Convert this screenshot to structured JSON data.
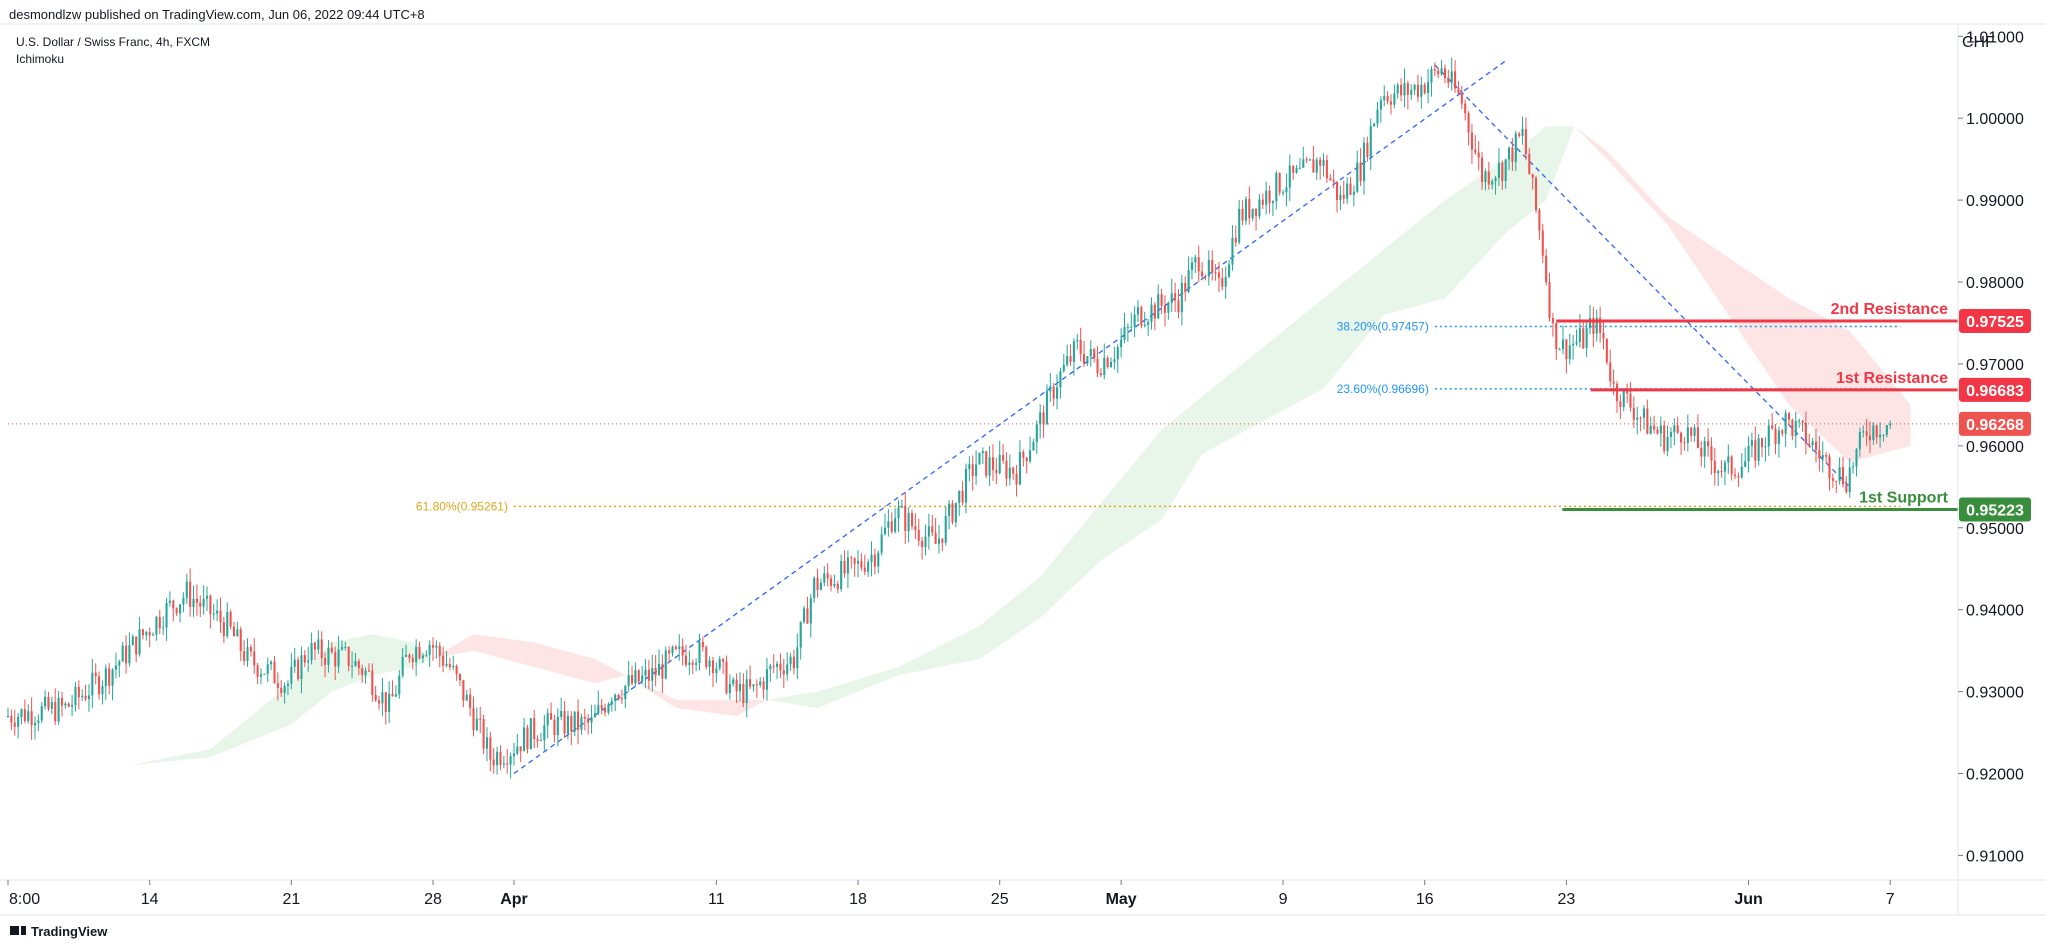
{
  "header": {
    "published": "desmondlzw published on TradingView.com, Jun 06, 2022 09:44 UTC+8",
    "symbol": "U.S. Dollar / Swiss Franc, 4h, FXCM",
    "indicator": "Ichimoku"
  },
  "footer": {
    "brand": "TradingView"
  },
  "colors": {
    "up": "#26a69a",
    "down": "#ef5350",
    "cloud_up": "#e8f5e9",
    "cloud_down": "#fde5e5",
    "trend": "#2962ff",
    "fib_blue": "#2196f3",
    "fib_orange": "#e0a61c",
    "resistance": "#f23645",
    "support": "#388e3c"
  },
  "chart_data": {
    "type": "candlestick",
    "currency": "CHF",
    "ylim": [
      0.907,
      1.0115
    ],
    "y_ticks": [
      "1.01000",
      "1.00000",
      "0.99000",
      "0.98000",
      "0.97000",
      "0.96000",
      "0.95000",
      "0.94000",
      "0.93000",
      "0.92000",
      "0.91000"
    ],
    "x_ticks": [
      {
        "label": "8:00",
        "x": 0,
        "bold": false
      },
      {
        "label": "14",
        "x": 7,
        "bold": false
      },
      {
        "label": "21",
        "x": 14,
        "bold": false
      },
      {
        "label": "28",
        "x": 21,
        "bold": false
      },
      {
        "label": "Apr",
        "x": 25,
        "bold": true
      },
      {
        "label": "11",
        "x": 35,
        "bold": false
      },
      {
        "label": "18",
        "x": 42,
        "bold": false
      },
      {
        "label": "25",
        "x": 49,
        "bold": false
      },
      {
        "label": "May",
        "x": 55,
        "bold": true
      },
      {
        "label": "9",
        "x": 63,
        "bold": false
      },
      {
        "label": "16",
        "x": 70,
        "bold": false
      },
      {
        "label": "23",
        "x": 77,
        "bold": false
      },
      {
        "label": "Jun",
        "x": 86,
        "bold": true
      },
      {
        "label": "7",
        "x": 93,
        "bold": false
      }
    ],
    "x_range": [
      0,
      96.3
    ],
    "price_path": [
      [
        0,
        0.927
      ],
      [
        3,
        0.928
      ],
      [
        5,
        0.932
      ],
      [
        8,
        0.94
      ],
      [
        9,
        0.942
      ],
      [
        10,
        0.94
      ],
      [
        11,
        0.938
      ],
      [
        12,
        0.934
      ],
      [
        14,
        0.931
      ],
      [
        15,
        0.935
      ],
      [
        17,
        0.934
      ],
      [
        18,
        0.932
      ],
      [
        19,
        0.928
      ],
      [
        20,
        0.935
      ],
      [
        21,
        0.936
      ],
      [
        22,
        0.933
      ],
      [
        23,
        0.928
      ],
      [
        24,
        0.922
      ],
      [
        25,
        0.923
      ],
      [
        26,
        0.925
      ],
      [
        27,
        0.926
      ],
      [
        29,
        0.926
      ],
      [
        30,
        0.93
      ],
      [
        32,
        0.932
      ],
      [
        33,
        0.934
      ],
      [
        34,
        0.935
      ],
      [
        35,
        0.934
      ],
      [
        36,
        0.93
      ],
      [
        37,
        0.93
      ],
      [
        38,
        0.933
      ],
      [
        39,
        0.934
      ],
      [
        40,
        0.943
      ],
      [
        42,
        0.945
      ],
      [
        43,
        0.947
      ],
      [
        44,
        0.952
      ],
      [
        45,
        0.95
      ],
      [
        46,
        0.948
      ],
      [
        47,
        0.953
      ],
      [
        48,
        0.958
      ],
      [
        50,
        0.957
      ],
      [
        51,
        0.962
      ],
      [
        52,
        0.968
      ],
      [
        53,
        0.972
      ],
      [
        54,
        0.97
      ],
      [
        55,
        0.972
      ],
      [
        56,
        0.976
      ],
      [
        57,
        0.977
      ],
      [
        58,
        0.978
      ],
      [
        59,
        0.983
      ],
      [
        60,
        0.979
      ],
      [
        61,
        0.988
      ],
      [
        62,
        0.99
      ],
      [
        63,
        0.992
      ],
      [
        64,
        0.993
      ],
      [
        65,
        0.995
      ],
      [
        66,
        0.99
      ],
      [
        67,
        0.994
      ],
      [
        68,
        1.003
      ],
      [
        69,
        1.003
      ],
      [
        70,
        1.004
      ],
      [
        71,
        1.006
      ],
      [
        72,
        1.002
      ],
      [
        73,
        0.993
      ],
      [
        74,
        0.994
      ],
      [
        75,
        0.998
      ],
      [
        76,
        0.984
      ],
      [
        76.5,
        0.974
      ],
      [
        77,
        0.972
      ],
      [
        78,
        0.973
      ],
      [
        78.5,
        0.975
      ],
      [
        79,
        0.973
      ],
      [
        79.5,
        0.967
      ],
      [
        80,
        0.966
      ],
      [
        81,
        0.963
      ],
      [
        82,
        0.961
      ],
      [
        83,
        0.962
      ],
      [
        84,
        0.959
      ],
      [
        85,
        0.957
      ],
      [
        86,
        0.958
      ],
      [
        87,
        0.961
      ],
      [
        88,
        0.963
      ],
      [
        89,
        0.961
      ],
      [
        90,
        0.958
      ],
      [
        91,
        0.956
      ],
      [
        92,
        0.962
      ],
      [
        93,
        0.9627
      ]
    ],
    "cloud": [
      {
        "band": [
          [
            6,
            0.921
          ],
          [
            10,
            0.923
          ],
          [
            14,
            0.931
          ],
          [
            16,
            0.936
          ],
          [
            18,
            0.937
          ],
          [
            20,
            0.936
          ],
          [
            20.9,
            0.934
          ]
        ],
        "lower": [
          [
            6,
            0.921
          ],
          [
            10,
            0.922
          ],
          [
            14,
            0.926
          ],
          [
            16,
            0.93
          ],
          [
            18,
            0.932
          ],
          [
            20,
            0.933
          ],
          [
            20.9,
            0.934
          ]
        ],
        "kind": "up"
      },
      {
        "band": [
          [
            20.9,
            0.934
          ],
          [
            23,
            0.937
          ],
          [
            26,
            0.936
          ],
          [
            29,
            0.934
          ],
          [
            30.5,
            0.932
          ]
        ],
        "lower": [
          [
            20.9,
            0.934
          ],
          [
            23,
            0.935
          ],
          [
            26,
            0.933
          ],
          [
            29,
            0.931
          ],
          [
            30.5,
            0.932
          ]
        ],
        "kind": "down"
      },
      {
        "band": [
          [
            30.5,
            0.932
          ],
          [
            33,
            0.928
          ],
          [
            36,
            0.927
          ],
          [
            37.5,
            0.929
          ]
        ],
        "lower": [
          [
            30.5,
            0.932
          ],
          [
            33,
            0.929
          ],
          [
            36,
            0.929
          ],
          [
            37.5,
            0.929
          ]
        ],
        "kind": "down"
      },
      {
        "band": [
          [
            37.5,
            0.929
          ],
          [
            40,
            0.93
          ],
          [
            44,
            0.933
          ],
          [
            48,
            0.938
          ],
          [
            51,
            0.944
          ],
          [
            54,
            0.953
          ],
          [
            57,
            0.962
          ],
          [
            59,
            0.966
          ],
          [
            62,
            0.972
          ],
          [
            65,
            0.978
          ],
          [
            68,
            0.984
          ],
          [
            71,
            0.99
          ],
          [
            74,
            0.995
          ],
          [
            76,
            0.999
          ],
          [
            77.4,
            0.999
          ]
        ],
        "lower": [
          [
            37.5,
            0.929
          ],
          [
            40,
            0.928
          ],
          [
            44,
            0.932
          ],
          [
            48,
            0.934
          ],
          [
            51,
            0.939
          ],
          [
            54,
            0.946
          ],
          [
            57,
            0.951
          ],
          [
            59,
            0.959
          ],
          [
            62,
            0.963
          ],
          [
            65,
            0.967
          ],
          [
            68,
            0.976
          ],
          [
            71,
            0.978
          ],
          [
            74,
            0.986
          ],
          [
            76,
            0.99
          ],
          [
            77.4,
            0.999
          ]
        ],
        "kind": "up"
      },
      {
        "band": [
          [
            77.4,
            0.999
          ],
          [
            79,
            0.996
          ],
          [
            82,
            0.988
          ],
          [
            85,
            0.983
          ],
          [
            88,
            0.978
          ],
          [
            91,
            0.974
          ],
          [
            94,
            0.965
          ]
        ],
        "lower": [
          [
            77.4,
            0.999
          ],
          [
            79,
            0.995
          ],
          [
            82,
            0.987
          ],
          [
            85,
            0.976
          ],
          [
            88,
            0.965
          ],
          [
            91,
            0.958
          ],
          [
            94,
            0.96
          ]
        ],
        "kind": "down"
      }
    ],
    "trendlines": [
      {
        "from": [
          25,
          0.92
        ],
        "to": [
          74,
          1.007
        ],
        "color": "trend"
      },
      {
        "from": [
          70.5,
          1.0065
        ],
        "to": [
          91,
          0.955
        ],
        "color": "trend"
      }
    ],
    "fib_levels": [
      {
        "label": "61.80%(0.95261)",
        "value": 0.95261,
        "x_from": 25,
        "x_to": 93.5,
        "color": "fib_orange"
      },
      {
        "label": "38.20%(0.97457)",
        "value": 0.97457,
        "x_from": 70.5,
        "x_to": 93.5,
        "color": "fib_blue"
      },
      {
        "label": "23.60%(0.96696)",
        "value": 0.96696,
        "x_from": 70.5,
        "x_to": 93.5,
        "color": "fib_blue"
      }
    ],
    "levels": [
      {
        "label": "2nd Resistance",
        "value": 0.97525,
        "tag": "0.97525",
        "x_from": 76.5,
        "color": "resistance"
      },
      {
        "label": "1st Resistance",
        "value": 0.96683,
        "tag": "0.96683",
        "x_from": 78.2,
        "color": "resistance"
      },
      {
        "label": "1st Support",
        "value": 0.95223,
        "tag": "0.95223",
        "x_from": 76.8,
        "color": "support"
      }
    ],
    "current_price": {
      "value": 0.96268,
      "tag": "0.96268"
    }
  }
}
